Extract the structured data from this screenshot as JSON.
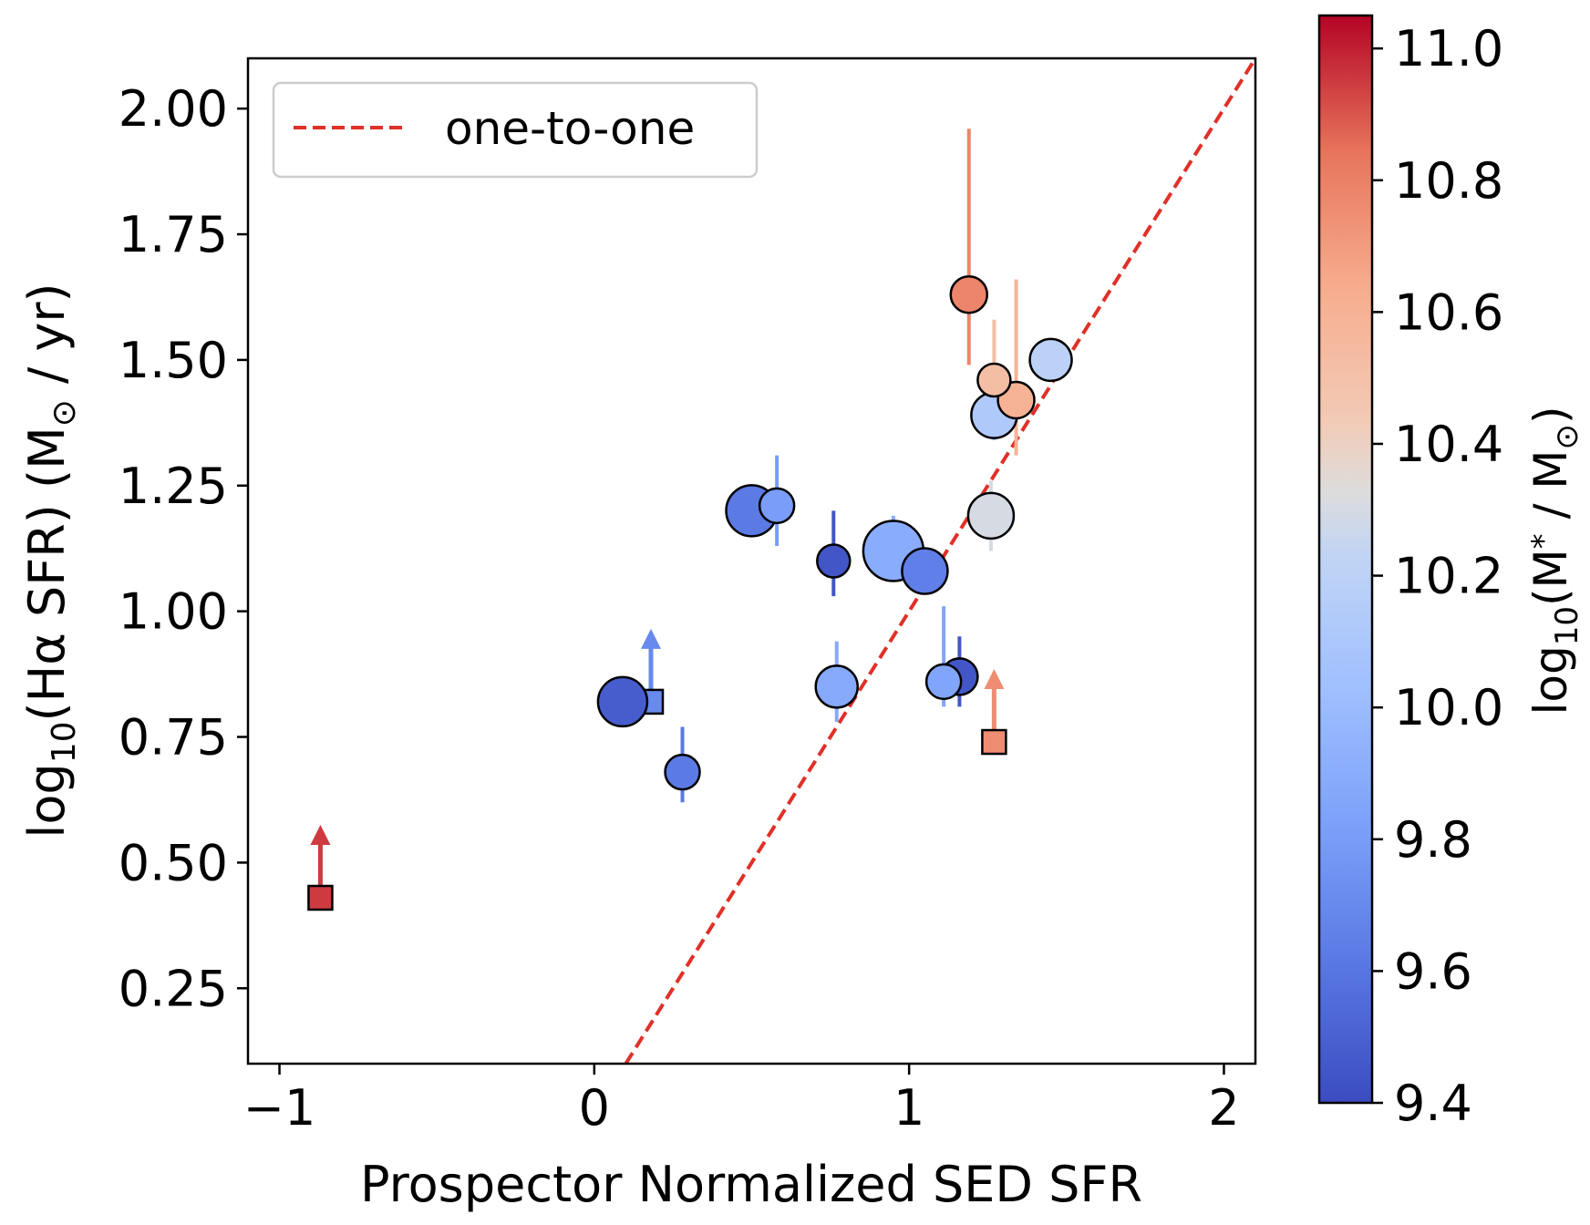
{
  "chart_data": {
    "type": "scatter",
    "xlabel": "Prospector Normalized SED SFR",
    "ylabel": "log10(Hα SFR) (M⊙ / yr)",
    "xlim": [
      -1.1,
      2.1
    ],
    "ylim": [
      0.1,
      2.1
    ],
    "x_ticks": [
      -1,
      0,
      1,
      2
    ],
    "x_tick_labels": [
      "−1",
      "0",
      "1",
      "2"
    ],
    "y_ticks": [
      0.25,
      0.5,
      0.75,
      1.0,
      1.25,
      1.5,
      1.75,
      2.0
    ],
    "y_tick_labels": [
      "0.25",
      "0.50",
      "0.75",
      "1.00",
      "1.25",
      "1.50",
      "1.75",
      "2.00"
    ],
    "grid": false,
    "legend": {
      "position": "top-left",
      "entries": [
        "one-to-one"
      ]
    },
    "colormap": "coolwarm",
    "one_to_one_line": {
      "color": "#e03027",
      "style": "dashed",
      "label": "one-to-one"
    },
    "colorbar": {
      "label": "log10(M* / M⊙)",
      "range": [
        9.4,
        11.05
      ],
      "ticks": [
        9.4,
        9.6,
        9.8,
        10.0,
        10.2,
        10.4,
        10.6,
        10.8,
        11.0
      ],
      "tick_labels": [
        "9.4",
        "9.6",
        "9.8",
        "10.0",
        "10.2",
        "10.4",
        "10.6",
        "10.8",
        "11.0"
      ]
    },
    "points": [
      {
        "x": 1.19,
        "y": 1.63,
        "yerr": [
          0.14,
          0.33
        ],
        "mass": 10.78,
        "size": 1.0
      },
      {
        "x": 1.45,
        "y": 1.5,
        "yerr": [
          0.0,
          0.0
        ],
        "mass": 10.2,
        "size": 1.15
      },
      {
        "x": 1.27,
        "y": 1.46,
        "yerr": [
          0.06,
          0.12
        ],
        "mass": 10.52,
        "size": 0.9
      },
      {
        "x": 1.34,
        "y": 1.42,
        "yerr": [
          0.11,
          0.24
        ],
        "mass": 10.6,
        "size": 1.0
      },
      {
        "x": 1.27,
        "y": 1.39,
        "yerr": [
          0.05,
          0.0
        ],
        "mass": 10.12,
        "size": 1.25
      },
      {
        "x": 1.26,
        "y": 1.19,
        "yerr": [
          0.07,
          0.07
        ],
        "mass": 10.3,
        "size": 1.25
      },
      {
        "x": 0.58,
        "y": 1.21,
        "yerr": [
          0.08,
          0.1
        ],
        "mass": 9.8,
        "size": 0.95
      },
      {
        "x": 0.5,
        "y": 1.2,
        "yerr": [
          0.0,
          0.0
        ],
        "mass": 9.62,
        "size": 1.4
      },
      {
        "x": 0.76,
        "y": 1.1,
        "yerr": [
          0.07,
          0.1
        ],
        "mass": 9.45,
        "size": 0.9
      },
      {
        "x": 1.05,
        "y": 1.08,
        "yerr": [
          0.0,
          0.0
        ],
        "mass": 9.65,
        "size": 1.25
      },
      {
        "x": 0.95,
        "y": 1.12,
        "yerr": [
          0.0,
          0.07
        ],
        "mass": 9.9,
        "size": 1.65
      },
      {
        "x": 1.11,
        "y": 0.86,
        "yerr": [
          0.05,
          0.15
        ],
        "mass": 9.85,
        "size": 0.95
      },
      {
        "x": 1.16,
        "y": 0.87,
        "yerr": [
          0.06,
          0.08
        ],
        "mass": 9.45,
        "size": 1.0
      },
      {
        "x": 0.77,
        "y": 0.85,
        "yerr": [
          0.07,
          0.09
        ],
        "mass": 9.88,
        "size": 1.15
      },
      {
        "x": 0.09,
        "y": 0.82,
        "yerr": [
          0.0,
          0.0
        ],
        "mass": 9.48,
        "size": 1.35
      },
      {
        "x": 0.28,
        "y": 0.68,
        "yerr": [
          0.06,
          0.09
        ],
        "mass": 9.62,
        "size": 0.95
      }
    ],
    "lower_limits": [
      {
        "x": -0.87,
        "y": 0.43,
        "mass": 10.95
      },
      {
        "x": 0.18,
        "y": 0.82,
        "mass": 9.7
      },
      {
        "x": 1.27,
        "y": 0.74,
        "mass": 10.75
      }
    ]
  }
}
